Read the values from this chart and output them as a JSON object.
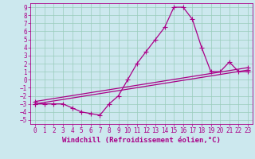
{
  "xlabel": "Windchill (Refroidissement éolien,°C)",
  "bg_color": "#cce8ee",
  "grid_color": "#99ccbb",
  "line_color": "#aa0088",
  "xlim": [
    -0.5,
    23.5
  ],
  "ylim": [
    -5.5,
    9.5
  ],
  "xticks": [
    0,
    1,
    2,
    3,
    4,
    5,
    6,
    7,
    8,
    9,
    10,
    11,
    12,
    13,
    14,
    15,
    16,
    17,
    18,
    19,
    20,
    21,
    22,
    23
  ],
  "yticks": [
    -5,
    -4,
    -3,
    -2,
    -1,
    0,
    1,
    2,
    3,
    4,
    5,
    6,
    7,
    8,
    9
  ],
  "line1_x": [
    0,
    1,
    2,
    3,
    4,
    5,
    6,
    7,
    8,
    9,
    10,
    11,
    12,
    13,
    14,
    15,
    16,
    17,
    18,
    19,
    20,
    21,
    22,
    23
  ],
  "line1_y": [
    -3,
    -3,
    -3,
    -3,
    -3.5,
    -4,
    -4.2,
    -4.4,
    -3.0,
    -2.0,
    0.0,
    2.0,
    3.5,
    5.0,
    6.5,
    9.0,
    9.0,
    7.5,
    4.0,
    1.0,
    1.0,
    2.2,
    1.0,
    1.0
  ],
  "line2_x": [
    0,
    23
  ],
  "line2_y": [
    -3.0,
    1.2
  ],
  "line3_x": [
    0,
    23
  ],
  "line3_y": [
    -2.7,
    1.5
  ],
  "marker": "+",
  "markersize": 4,
  "linewidth": 0.9,
  "xlabel_fontsize": 6.5,
  "tick_fontsize": 5.5,
  "font_family": "monospace"
}
